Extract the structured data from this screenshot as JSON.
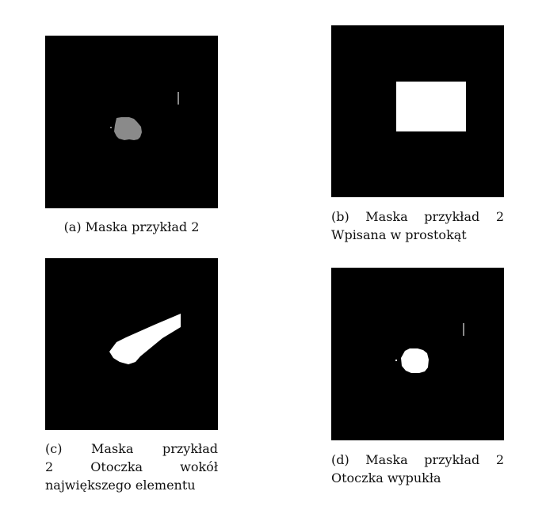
{
  "figures": [
    {
      "id": "a",
      "caption_lines": [
        "(a) Maska przykład 2"
      ]
    },
    {
      "id": "b",
      "caption_lines": [
        "(b) Maska przykład 2",
        "Wpisana w prostokąt"
      ]
    },
    {
      "id": "c",
      "caption_lines": [
        "(c) Maska przykład",
        "2 Otoczka wokół",
        "największego elementu"
      ]
    },
    {
      "id": "d",
      "caption_lines": [
        "(d) Maska przykład 2",
        "Otoczka wypukła"
      ]
    }
  ],
  "colors": {
    "background": "#000000",
    "mask_gray": "#8a8a8a",
    "mask_white": "#ffffff"
  }
}
